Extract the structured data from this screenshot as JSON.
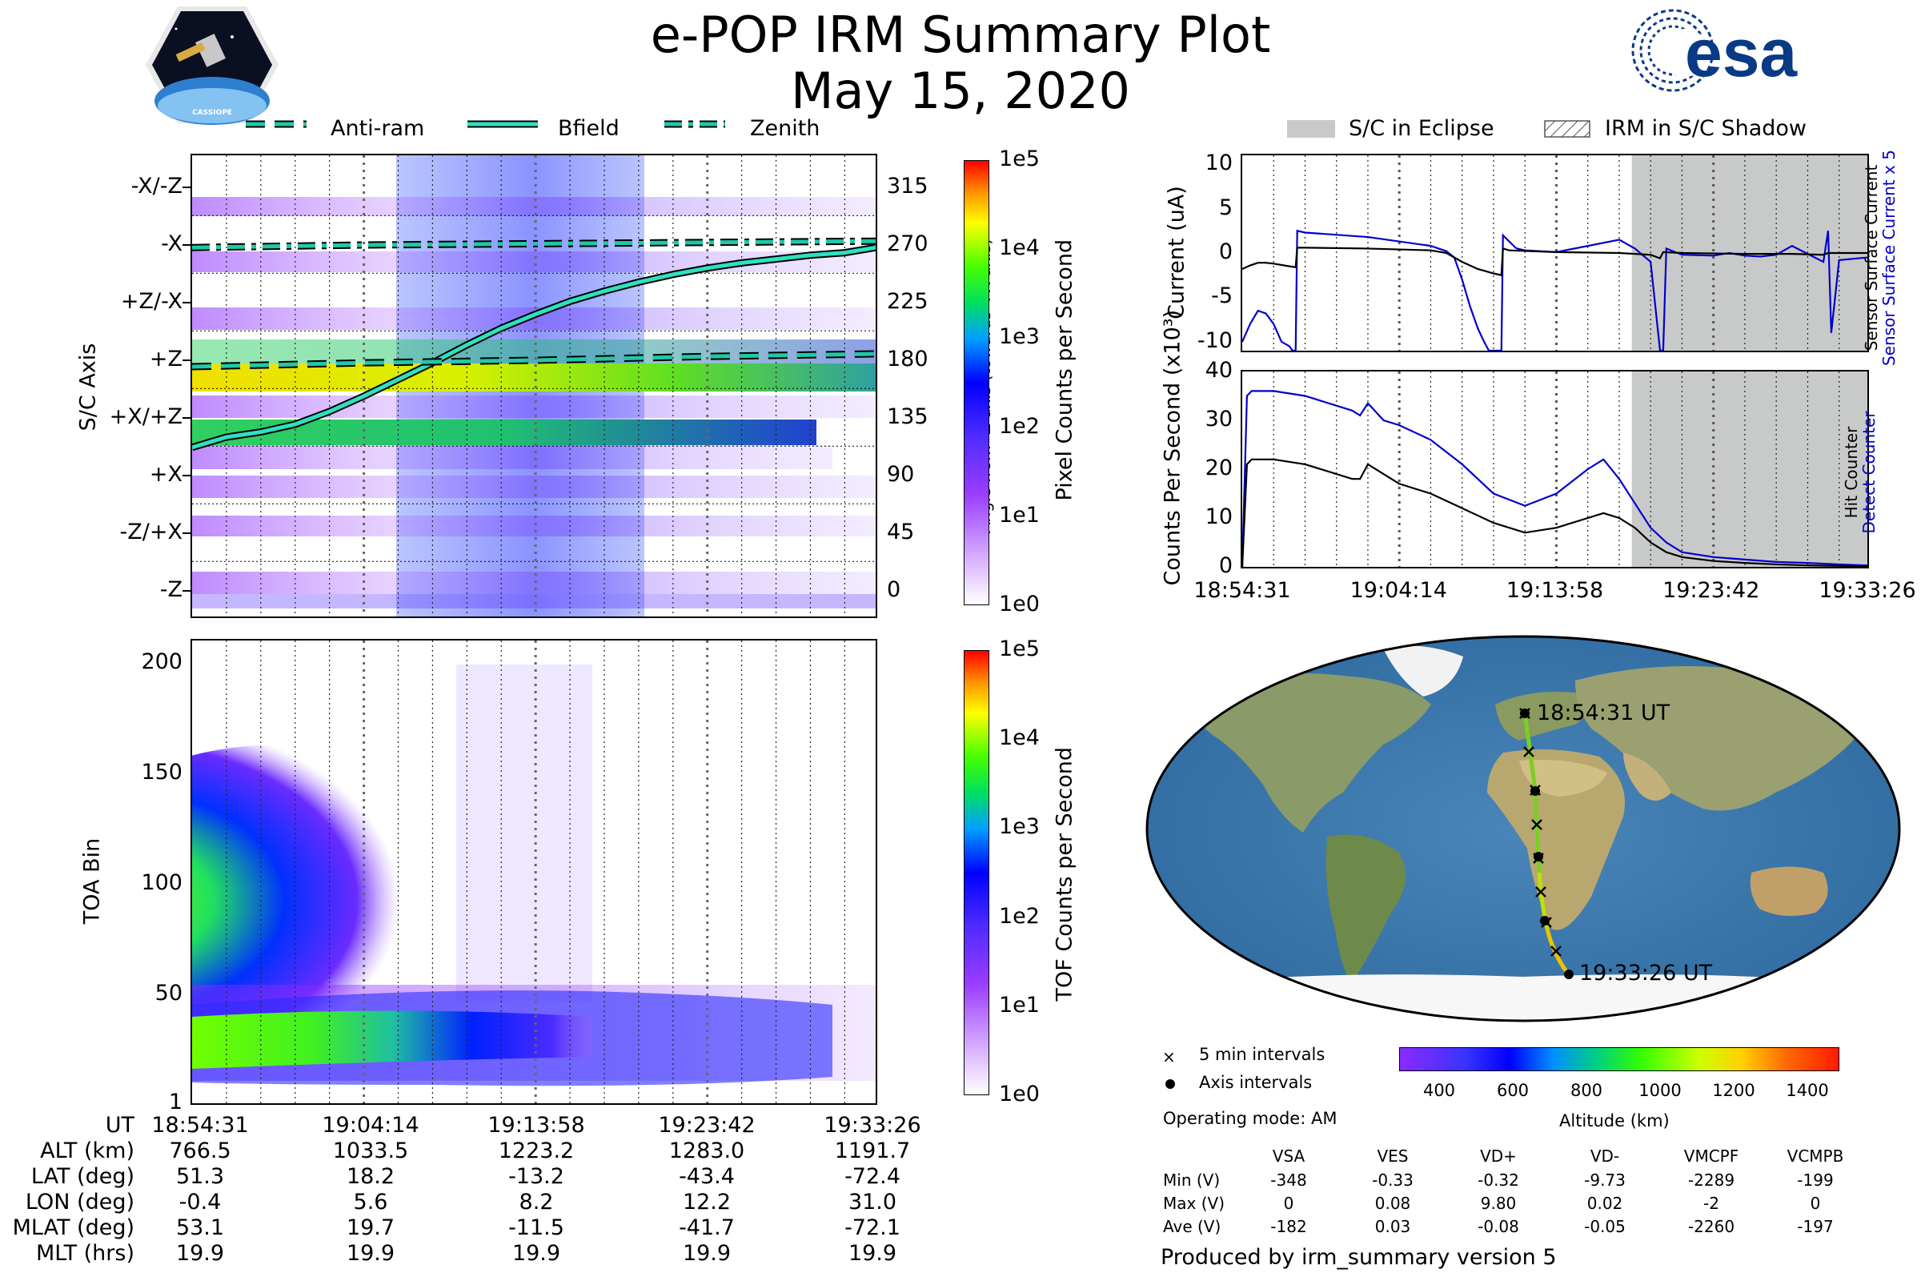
{
  "header": {
    "title": "e-POP IRM Summary Plot",
    "date": "May 15, 2020",
    "esa_logo_text": "esa",
    "cassiope_text": "CASSIOPE"
  },
  "legend_top_left": {
    "anti_ram": "Anti-ram",
    "bfield": "Bfield",
    "zenith": "Zenith"
  },
  "legend_top_right": {
    "eclipse": "S/C in Eclipse",
    "shadow": "IRM in S/C Shadow"
  },
  "colors": {
    "bfield": "#2fe0c0",
    "anti_ram": "#20c8a8",
    "eclipse": "#c8cac9",
    "sensor_current": "#0000cc",
    "black": "#000000"
  },
  "chart_data": [
    {
      "id": "sc-axis-spectrogram",
      "type": "heatmap",
      "ylabel": "S/C Axis",
      "y2label": "Angle from -Z axis (towards +X axis)",
      "y_tick_labels": [
        "-X/-Z",
        "-X",
        "+Z/-X",
        "+Z",
        "+X/+Z",
        "+X",
        "-Z/+X",
        "-Z"
      ],
      "y2_ticks": [
        315,
        270,
        225,
        180,
        135,
        90,
        45,
        0
      ],
      "ylim": [
        -20,
        340
      ],
      "colorbar_label": "Pixel Counts per Second",
      "colorbar_ticks": [
        "1e5",
        "1e4",
        "1e3",
        "1e2",
        "1e1",
        "1e0"
      ],
      "series": [
        {
          "name": "Bfield",
          "x": [
            0,
            2,
            4,
            6,
            8,
            10,
            12,
            14,
            16,
            18,
            20,
            22,
            24,
            26,
            28,
            30,
            32,
            34,
            36,
            38,
            39.8
          ],
          "values": [
            112,
            120,
            124,
            130,
            140,
            152,
            165,
            178,
            192,
            205,
            216,
            226,
            234,
            241,
            247,
            252,
            256,
            259,
            262,
            264,
            268
          ]
        },
        {
          "name": "Anti-ram",
          "x": [
            0,
            10,
            20,
            30,
            39.8
          ],
          "values": [
            175,
            178,
            180,
            183,
            185
          ]
        },
        {
          "name": "Zenith",
          "x": [
            0,
            10,
            20,
            30,
            39.8
          ],
          "values": [
            268,
            270,
            271,
            272,
            273
          ]
        }
      ]
    },
    {
      "id": "toa-spectrogram",
      "type": "heatmap",
      "ylabel": "TOA Bin",
      "y_ticks": [
        1,
        50,
        100,
        150,
        200
      ],
      "ylim": [
        1,
        210
      ],
      "colorbar_label": "TOF Counts per Second",
      "colorbar_ticks": [
        "1e5",
        "1e4",
        "1e3",
        "1e2",
        "1e1",
        "1e0"
      ]
    },
    {
      "id": "current-panel",
      "type": "line",
      "ylabel": "Current (uA)",
      "y_ticks": [
        10,
        5,
        0,
        -5,
        -10
      ],
      "ylim": [
        -11,
        11
      ],
      "right_label_blue": "Sensor Surface Current x 5",
      "right_label_black": "Sensor Surface Current",
      "eclipse_start_min": 24.8,
      "series": [
        {
          "name": "Sensor Surface Current x 5",
          "color": "#0000cc",
          "x": [
            0,
            0.5,
            1,
            1.5,
            2,
            2.5,
            3,
            3.2,
            3.4,
            3.5,
            4,
            8,
            12,
            13,
            13.5,
            14,
            14.5,
            15,
            15.4,
            15.7,
            16,
            16.5,
            16.6,
            17.4,
            17.5,
            18,
            20,
            24,
            25,
            26,
            26.6,
            26.8,
            27,
            28,
            30,
            31,
            32,
            33,
            34,
            35,
            37,
            37.3,
            37.5,
            38,
            39.8
          ],
          "values": [
            -10,
            -8,
            -6.5,
            -6.8,
            -8,
            -10,
            -10.5,
            -11,
            -11,
            2.5,
            2.3,
            1.8,
            0.8,
            0.2,
            -0.5,
            -3,
            -6,
            -8.5,
            -10,
            -11,
            -11,
            -11,
            2,
            0.6,
            0.5,
            0.3,
            0.1,
            1.5,
            0.5,
            -1,
            -11,
            -11,
            0.5,
            -0.2,
            -0.3,
            0,
            -0.3,
            -0.4,
            -0.2,
            0.8,
            -1,
            2.5,
            -9,
            -0.8,
            -0.5
          ]
        },
        {
          "name": "Sensor Surface Current",
          "color": "#000000",
          "x": [
            0,
            0.5,
            1,
            1.5,
            2,
            3,
            3.4,
            3.5,
            4,
            8,
            12,
            13,
            14,
            15,
            16,
            16.5,
            16.6,
            17,
            20,
            24,
            26,
            26.6,
            26.8,
            28,
            32,
            35,
            37,
            37.3,
            37.5,
            39.8
          ],
          "values": [
            -1.8,
            -1.4,
            -1.1,
            -1.1,
            -1.2,
            -1.5,
            -1.6,
            0.6,
            0.6,
            0.5,
            0.3,
            0,
            -1,
            -1.8,
            -2.3,
            -2.5,
            0.5,
            0.3,
            0.1,
            0,
            -0.2,
            -0.6,
            0.1,
            0,
            -0.1,
            -0.1,
            -0.2,
            0,
            0,
            0
          ]
        }
      ]
    },
    {
      "id": "counts-panel",
      "type": "line",
      "ylabel": "Counts Per Second (x10³)",
      "y_ticks": [
        0,
        10,
        20,
        30,
        40
      ],
      "ylim": [
        0,
        40
      ],
      "right_label_blue": "Detect Counter",
      "right_label_black": "Hit Counter",
      "x_tick_labels": [
        "18:54:31",
        "19:04:14",
        "19:13:58",
        "19:23:42",
        "19:33:26"
      ],
      "eclipse_start_min": 24.8,
      "series": [
        {
          "name": "Detect Counter",
          "color": "#0000cc",
          "x": [
            0,
            0.3,
            0.6,
            2,
            4,
            6,
            7,
            7.5,
            8,
            9,
            10,
            12,
            14,
            16,
            18,
            20,
            22,
            23,
            24,
            25,
            26,
            27,
            28,
            30,
            32,
            34,
            36,
            38,
            39.8
          ],
          "values": [
            0,
            35,
            36,
            36,
            35,
            33,
            32,
            31,
            33.5,
            30,
            29,
            26,
            21,
            15,
            12.5,
            15,
            20,
            22,
            18,
            13,
            8,
            5,
            3,
            2,
            1.5,
            1,
            0.8,
            0.5,
            0.3
          ]
        },
        {
          "name": "Hit Counter",
          "color": "#000000",
          "x": [
            0,
            0.3,
            0.6,
            2,
            4,
            6,
            7,
            7.5,
            8,
            10,
            12,
            14,
            16,
            18,
            20,
            22,
            23,
            24,
            25,
            26,
            27,
            28,
            30,
            32,
            34,
            36,
            38,
            39.8
          ],
          "values": [
            0,
            21,
            22,
            22,
            21,
            19,
            18,
            18,
            21,
            17,
            15,
            12,
            9,
            7,
            8,
            10,
            11,
            10,
            8,
            5,
            3,
            2,
            1.2,
            0.8,
            0.5,
            0.3,
            0.2,
            0.1
          ]
        }
      ]
    }
  ],
  "position_table": {
    "row_labels": [
      "UT",
      "ALT (km)",
      "LAT (deg)",
      "LON (deg)",
      "MLAT (deg)",
      "MLT (hrs)"
    ],
    "columns": [
      [
        "18:54:31",
        "766.5",
        "51.3",
        "-0.4",
        "53.1",
        "19.9"
      ],
      [
        "19:04:14",
        "1033.5",
        "18.2",
        "5.6",
        "19.7",
        "19.9"
      ],
      [
        "19:13:58",
        "1223.2",
        "-13.2",
        "8.2",
        "-11.5",
        "19.9"
      ],
      [
        "19:23:42",
        "1283.0",
        "-43.4",
        "12.2",
        "-41.7",
        "19.9"
      ],
      [
        "19:33:26",
        "1191.7",
        "-72.4",
        "31.0",
        "-72.1",
        "19.9"
      ]
    ]
  },
  "map": {
    "start_label": "18:54:31 UT",
    "end_label": "19:33:26 UT"
  },
  "map_legend": {
    "five_min": "5 min intervals",
    "axis_intervals": "Axis intervals",
    "mode": "Operating mode: AM"
  },
  "altitude_bar": {
    "label": "Altitude (km)",
    "ticks": [
      "400",
      "600",
      "800",
      "1000",
      "1200",
      "1400"
    ]
  },
  "stats": {
    "headers": [
      "VSA",
      "VES",
      "VD+",
      "VD-",
      "VMCPF",
      "VCMPB"
    ],
    "rows": [
      {
        "label": "Min (V)",
        "values": [
          "-348",
          "-0.33",
          "-0.32",
          "-9.73",
          "-2289",
          "-199"
        ]
      },
      {
        "label": "Max (V)",
        "values": [
          "0",
          "0.08",
          "9.80",
          "0.02",
          "-2",
          "0"
        ]
      },
      {
        "label": "Ave (V)",
        "values": [
          "-182",
          "0.03",
          "-0.08",
          "-0.05",
          "-2260",
          "-197"
        ]
      }
    ]
  },
  "footer": "Produced by irm_summary version 5"
}
